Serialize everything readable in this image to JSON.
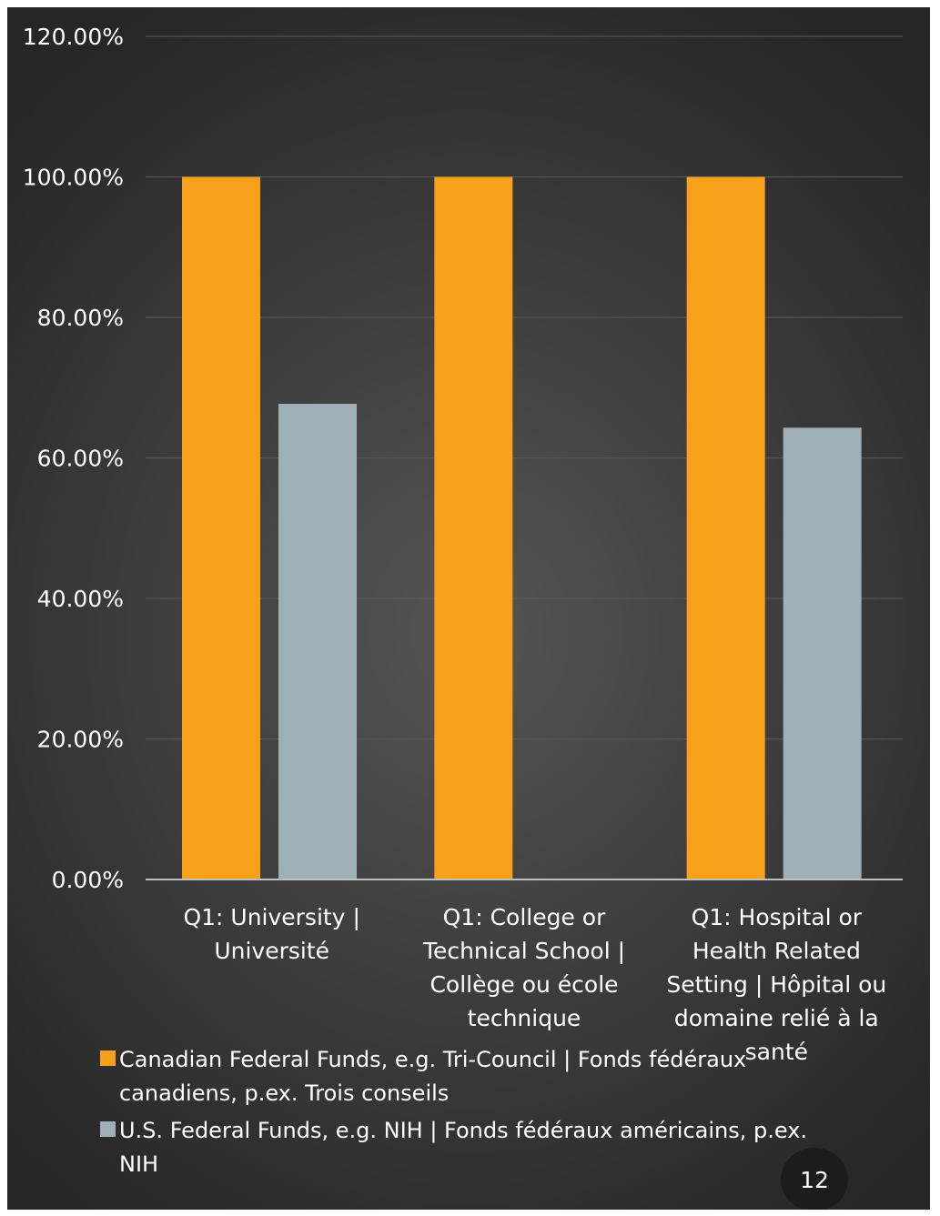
{
  "chart_data": {
    "type": "bar",
    "categories": [
      [
        "Q1: University |",
        "Université"
      ],
      [
        "Q1: College or",
        "Technical School |",
        "Collège ou école",
        "technique"
      ],
      [
        "Q1: Hospital or",
        "Health Related",
        "Setting |  Hôpital ou",
        "domaine relié à la",
        "santé"
      ]
    ],
    "series": [
      {
        "name": [
          "Canadian Federal Funds, e.g. Tri-Council  | Fonds fédéraux",
          "canadiens, p.ex. Trois conseils"
        ],
        "values": [
          100.0,
          100.0,
          100.0
        ],
        "color": "#f7a11a"
      },
      {
        "name": [
          "U.S. Federal Funds, e.g. NIH | Fonds fédéraux américains, p.ex.",
          "NIH"
        ],
        "values": [
          67.7,
          null,
          64.3
        ],
        "color": "#9eafb5"
      }
    ],
    "ylim": [
      0,
      120
    ],
    "yticks": [
      "0.00%",
      "20.00%",
      "40.00%",
      "60.00%",
      "80.00%",
      "100.00%",
      "120.00%"
    ],
    "ytick_values": [
      0,
      20,
      40,
      60,
      80,
      100,
      120
    ],
    "grid": true,
    "legend_position": "bottom",
    "colors": {
      "background": "#3f3f3f",
      "text": "#ffffff",
      "grid": "#5a5a5a"
    }
  },
  "page_number": "12"
}
